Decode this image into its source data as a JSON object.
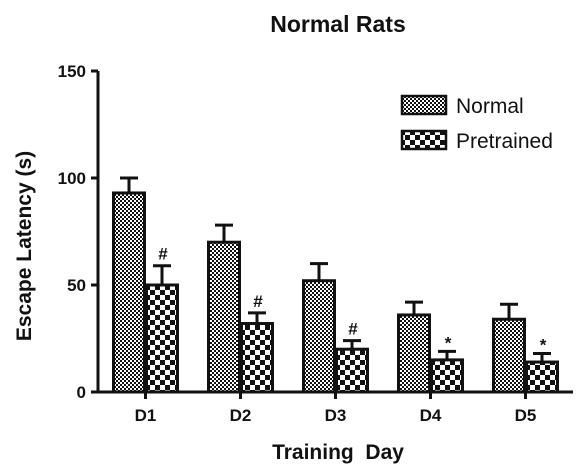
{
  "chart_data": {
    "type": "bar",
    "title": "Normal Rats",
    "xlabel": "Training  Day",
    "ylabel": "Escape Latency (s)",
    "ylim": [
      0,
      150
    ],
    "yticks": [
      "0",
      "50",
      "100",
      "150"
    ],
    "categories": [
      "D1",
      "D2",
      "D3",
      "D4",
      "D5"
    ],
    "series": [
      {
        "name": "Normal",
        "pattern": "fine-checker",
        "values": [
          93,
          70,
          52,
          36,
          34
        ],
        "errors": [
          7,
          8,
          8,
          6,
          7
        ]
      },
      {
        "name": "Pretrained",
        "pattern": "coarse-checker",
        "values": [
          50,
          32,
          20,
          15,
          14
        ],
        "errors": [
          9,
          5,
          4,
          4,
          4
        ]
      }
    ],
    "significance": [
      "#",
      "#",
      "#",
      "*",
      "*"
    ],
    "legend_position": "top-right",
    "grid": false,
    "colors": {
      "ink": "#111111",
      "background": "#ffffff"
    }
  }
}
